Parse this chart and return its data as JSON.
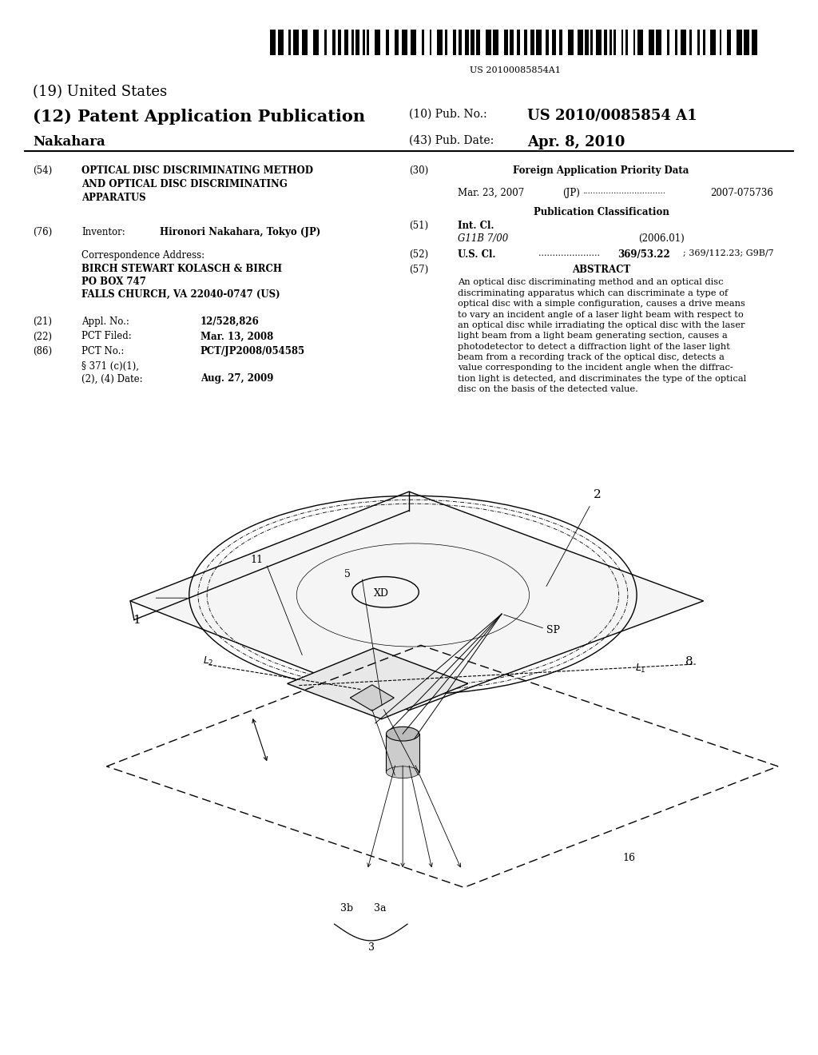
{
  "bg_color": "#ffffff",
  "barcode_text": "US 20100085854A1",
  "title_19": "(19) United States",
  "title_12": "(12) Patent Application Publication",
  "pub_no_label": "(10) Pub. No.:",
  "pub_no_value": "US 2010/0085854 A1",
  "inventor_last": "Nakahara",
  "pub_date_label": "(43) Pub. Date:",
  "pub_date_value": "Apr. 8, 2010",
  "section54_label": "(54)",
  "section54_title": "OPTICAL DISC DISCRIMINATING METHOD\nAND OPTICAL DISC DISCRIMINATING\nAPPARATUS",
  "section30_label": "(30)",
  "section30_title": "Foreign Application Priority Data",
  "priority_date": "Mar. 23, 2007",
  "priority_country": "(JP)",
  "priority_dots": "................................",
  "priority_number": "2007-075736",
  "pub_class_title": "Publication Classification",
  "section76_label": "(76)",
  "inventor_label": "Inventor:",
  "inventor_name": "Hironori Nakahara, Tokyo (JP)",
  "corr_address_label": "Correspondence Address:",
  "corr_line1": "BIRCH STEWART KOLASCH & BIRCH",
  "corr_line2": "PO BOX 747",
  "corr_line3": "FALLS CHURCH, VA 22040-0747 (US)",
  "section51_label": "(51)",
  "intcl_label": "Int. Cl.",
  "intcl_code": "G11B 7/00",
  "intcl_year": "(2006.01)",
  "section52_label": "(52)",
  "uscl_label": "U.S. Cl.",
  "uscl_dots": "......................",
  "uscl_value": "369/53.22",
  "uscl_extra": "; 369/112.23; G9B/7",
  "section57_label": "(57)",
  "abstract_title": "ABSTRACT",
  "abstract_text": "An optical disc discriminating method and an optical disc\ndiscriminating apparatus which can discriminate a type of\noptical disc with a simple configuration, causes a drive means\nto vary an incident angle of a laser light beam with respect to\nan optical disc while irradiating the optical disc with the laser\nlight beam from a light beam generating section, causes a\nphotodetector to detect a diffraction light of the laser light\nbeam from a recording track of the optical disc, detects a\nvalue corresponding to the incident angle when the diffrac-\ntion light is detected, and discriminates the type of the optical\ndisc on the basis of the detected value.",
  "section21_label": "(21)",
  "appl_label": "Appl. No.:",
  "appl_value": "12/528,826",
  "section22_label": "(22)",
  "pctfiled_label": "PCT Filed:",
  "pctfiled_value": "Mar. 13, 2008",
  "section86_label": "(86)",
  "pctno_label": "PCT No.:",
  "pctno_value": "PCT/JP2008/054585",
  "section371_label": "§ 371 (c)(1),",
  "section371b_label": "(2), (4) Date:",
  "section371_value": "Aug. 27, 2009"
}
